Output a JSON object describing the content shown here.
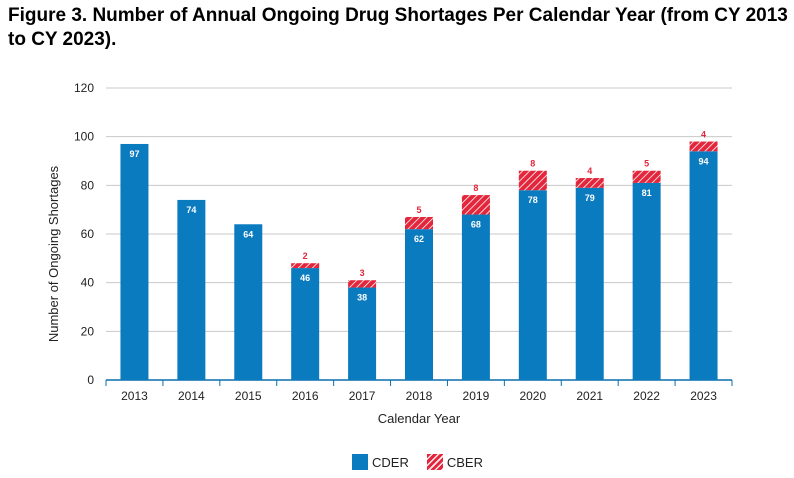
{
  "chart_data": {
    "type": "bar",
    "stacked": true,
    "title": "Figure 3.  Number of Annual Ongoing Drug Shortages Per Calendar Year (from CY 2013 to CY 2023).",
    "xlabel": "Calendar Year",
    "ylabel": "Number of Ongoing Shortages",
    "ylim": [
      0,
      120
    ],
    "yticks": [
      0,
      20,
      40,
      60,
      80,
      100,
      120
    ],
    "grid": true,
    "legend_position": "bottom",
    "categories": [
      "2013",
      "2014",
      "2015",
      "2016",
      "2017",
      "2018",
      "2019",
      "2020",
      "2021",
      "2022",
      "2023"
    ],
    "series": [
      {
        "name": "CDER",
        "color": "#0b7bc0",
        "values": [
          97,
          74,
          64,
          46,
          38,
          62,
          68,
          78,
          79,
          81,
          94
        ],
        "labels": [
          "97",
          "74",
          "64",
          "46",
          "38",
          "62",
          "68",
          "78",
          "79",
          "81",
          "94"
        ]
      },
      {
        "name": "CBER",
        "color": "#e4263c",
        "pattern": "hatched",
        "values": [
          0,
          0,
          0,
          2,
          3,
          5,
          8,
          8,
          4,
          5,
          4
        ],
        "labels": [
          "",
          "",
          "",
          "2",
          "3",
          "5",
          "8",
          "8",
          "4",
          "5",
          "4"
        ]
      }
    ]
  }
}
